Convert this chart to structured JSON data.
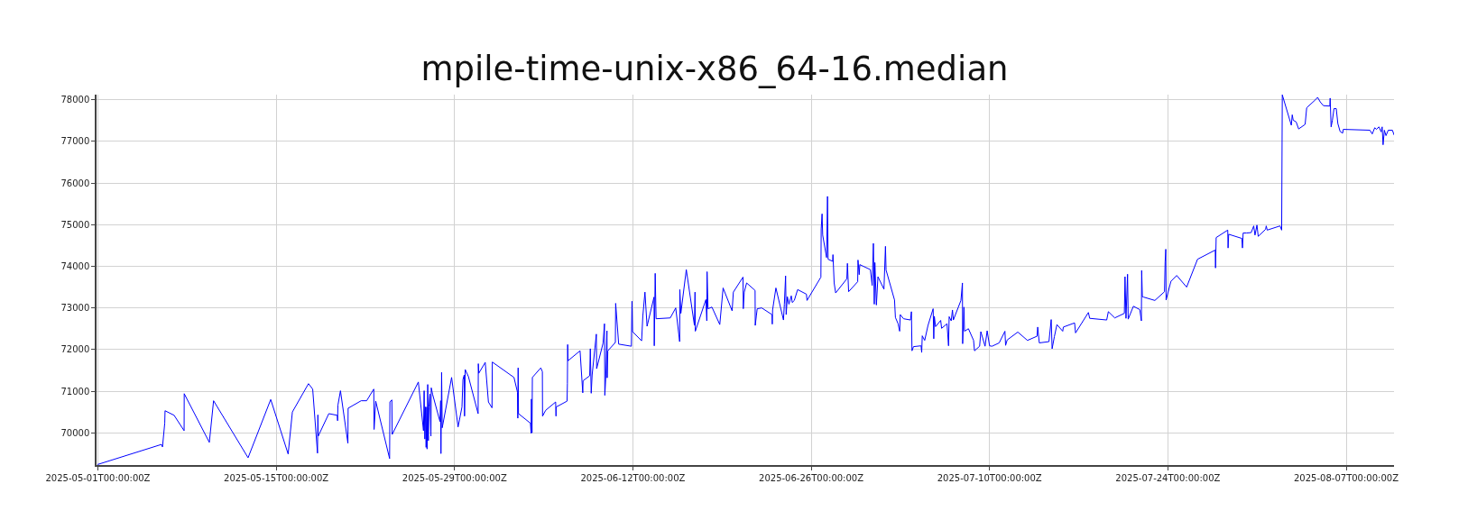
{
  "chart_data": {
    "type": "line",
    "title": "mpile-time-unix-x86_64-16.median",
    "x": [
      "2025-05-01T00:00",
      "2025-05-05T23:55",
      "2025-05-06T01:45",
      "2025-05-06T06:00",
      "2025-05-06T06:35",
      "2025-05-06T23:40",
      "2025-05-07T18:30",
      "2025-05-07T18:40",
      "2025-05-09T18:00",
      "2025-05-10T02:00",
      "2025-05-12T19:00",
      "2025-05-14T13:40",
      "2025-05-15T22:30",
      "2025-05-16T06:30",
      "2025-05-17T12:50",
      "2025-05-17T20:45",
      "2025-05-18T05:50",
      "2025-05-18T06:30",
      "2025-05-18T07:10",
      "2025-05-19T03:10",
      "2025-05-19T19:00",
      "2025-05-19T19:40",
      "2025-05-19T20:15",
      "2025-05-20T01:05",
      "2025-05-20T15:05",
      "2025-05-20T15:30",
      "2025-05-21T16:05",
      "2025-05-22T02:25",
      "2025-05-22T15:50",
      "2025-05-22T16:25",
      "2025-05-22T19:30",
      "2025-05-23T21:40",
      "2025-05-23T22:15",
      "2025-05-24T01:55",
      "2025-05-24T02:30",
      "2025-05-26T03:50",
      "2025-05-26T13:30",
      "2025-05-26T14:45",
      "2025-05-26T16:00",
      "2025-05-26T17:10",
      "2025-05-26T18:25",
      "2025-05-26T19:40",
      "2025-05-26T20:15",
      "2025-05-26T21:30",
      "2025-05-26T22:40",
      "2025-05-26T23:50",
      "2025-05-27T01:40",
      "2025-05-27T03:30",
      "2025-05-27T04:10",
      "2025-05-27T06:35",
      "2025-05-27T20:35",
      "2025-05-27T21:50",
      "2025-05-27T22:25",
      "2025-05-27T23:40",
      "2025-05-28T00:50",
      "2025-05-28T18:30",
      "2025-05-29T06:40",
      "2025-05-29T14:00",
      "2025-05-29T15:50",
      "2025-05-29T18:15",
      "2025-05-29T18:50",
      "2025-05-29T20:05",
      "2025-05-30T02:10",
      "2025-05-30T20:25",
      "2025-05-30T20:50",
      "2025-05-30T21:40",
      "2025-05-31T09:50",
      "2025-05-31T15:50",
      "2025-05-31T22:35",
      "2025-05-31T23:10",
      "2025-06-02T16:00",
      "2025-06-02T22:40",
      "2025-06-02T23:15",
      "2025-06-02T23:50",
      "2025-06-03T00:30",
      "2025-06-03T23:00",
      "2025-06-04T00:15",
      "2025-06-04T00:50",
      "2025-06-04T02:00",
      "2025-06-04T02:40",
      "2025-06-04T18:30",
      "2025-06-04T21:30",
      "2025-06-04T21:50",
      "2025-06-05T03:40",
      "2025-06-05T22:30",
      "2025-06-05T23:10",
      "2025-06-05T23:30",
      "2025-06-06T20:00",
      "2025-06-06T20:40",
      "2025-06-06T21:10",
      "2025-06-06T21:45",
      "2025-06-07T20:30",
      "2025-06-08T01:35",
      "2025-06-08T02:10",
      "2025-06-08T14:40",
      "2025-06-08T15:50",
      "2025-06-08T17:30",
      "2025-06-08T19:15",
      "2025-06-09T03:10",
      "2025-06-09T03:45",
      "2025-06-09T15:45",
      "2025-06-09T18:30",
      "2025-06-09T19:10",
      "2025-06-09T20:50",
      "2025-06-09T23:10",
      "2025-06-09T23:40",
      "2025-06-10T00:50",
      "2025-06-10T15:00",
      "2025-06-10T15:35",
      "2025-06-10T21:15",
      "2025-06-11T21:10",
      "2025-06-11T22:20",
      "2025-06-11T23:25",
      "2025-06-12T16:30",
      "2025-06-12T18:45",
      "2025-06-12T22:45",
      "2025-06-13T02:45",
      "2025-06-13T15:50",
      "2025-06-13T16:20",
      "2025-06-13T18:05",
      "2025-06-13T19:45",
      "2025-06-14T22:30",
      "2025-06-15T08:45",
      "2025-06-15T16:10",
      "2025-06-15T16:30",
      "2025-06-15T18:25",
      "2025-06-16T04:40",
      "2025-06-16T20:00",
      "2025-06-16T21:05",
      "2025-06-16T21:40",
      "2025-06-17T17:35",
      "2025-06-17T19:20",
      "2025-06-17T19:50",
      "2025-06-17T21:35",
      "2025-06-18T05:00",
      "2025-06-18T19:45",
      "2025-06-19T02:00",
      "2025-06-19T19:00",
      "2025-06-19T21:20",
      "2025-06-20T15:30",
      "2025-06-20T16:05",
      "2025-06-20T17:50",
      "2025-06-20T22:20",
      "2025-06-21T14:15",
      "2025-06-21T14:35",
      "2025-06-21T16:35",
      "2025-06-21T18:15",
      "2025-06-22T02:45",
      "2025-06-22T22:05",
      "2025-06-22T22:40",
      "2025-06-22T23:15",
      "2025-06-23T05:30",
      "2025-06-23T19:45",
      "2025-06-23T21:25",
      "2025-06-23T23:45",
      "2025-06-24T00:50",
      "2025-06-24T03:05",
      "2025-06-24T06:00",
      "2025-06-24T10:30",
      "2025-06-24T12:15",
      "2025-06-24T16:10",
      "2025-06-24T22:25",
      "2025-06-25T15:00",
      "2025-06-25T16:05",
      "2025-06-26T18:15",
      "2025-06-26T18:50",
      "2025-06-26T20:30",
      "2025-06-26T21:40",
      "2025-06-27T05:00",
      "2025-06-27T06:45",
      "2025-06-27T07:50",
      "2025-06-27T16:25",
      "2025-06-27T17:00",
      "2025-06-27T19:15",
      "2025-06-27T22:05",
      "2025-06-28T19:10",
      "2025-06-28T20:15",
      "2025-06-28T22:30",
      "2025-06-29T15:35",
      "2025-06-29T16:10",
      "2025-06-29T18:25",
      "2025-06-29T19:35",
      "2025-06-30T15:30",
      "2025-06-30T18:55",
      "2025-06-30T21:10",
      "2025-06-30T22:50",
      "2025-07-01T00:00",
      "2025-07-01T02:50",
      "2025-07-01T05:45",
      "2025-07-01T17:05",
      "2025-07-01T19:55",
      "2025-07-01T21:05",
      "2025-07-02T13:00",
      "2025-07-02T14:40",
      "2025-07-02T19:45",
      "2025-07-02T22:40",
      "2025-07-02T23:45",
      "2025-07-03T06:00",
      "2025-07-03T19:05",
      "2025-07-03T20:50",
      "2025-07-03T21:55",
      "2025-07-04T00:45",
      "2025-07-04T15:00",
      "2025-07-04T16:10",
      "2025-07-04T17:15",
      "2025-07-04T21:50",
      "2025-07-05T04:05",
      "2025-07-05T13:45",
      "2025-07-05T14:55",
      "2025-07-05T16:00",
      "2025-07-05T18:15",
      "2025-07-06T04:00",
      "2025-07-06T05:40",
      "2025-07-06T15:55",
      "2025-07-06T18:45",
      "2025-07-06T19:55",
      "2025-07-06T23:50",
      "2025-07-07T02:10",
      "2025-07-07T03:50",
      "2025-07-07T18:05",
      "2025-07-07T20:55",
      "2025-07-07T21:20",
      "2025-07-07T23:45",
      "2025-07-08T00:50",
      "2025-07-08T08:15",
      "2025-07-08T17:55",
      "2025-07-08T19:40",
      "2025-07-09T05:20",
      "2025-07-09T07:35",
      "2025-07-09T15:35",
      "2025-07-09T19:30",
      "2025-07-10T00:05",
      "2025-07-10T04:50",
      "2025-07-10T18:10",
      "2025-07-11T05:00",
      "2025-07-11T06:15",
      "2025-07-11T09:15",
      "2025-07-12T05:15",
      "2025-07-12T23:25",
      "2025-07-13T17:30",
      "2025-07-13T18:45",
      "2025-07-13T21:45",
      "2025-07-14T15:55",
      "2025-07-14T20:10",
      "2025-07-14T21:55",
      "2025-07-15T02:10",
      "2025-07-15T07:00",
      "2025-07-15T17:55",
      "2025-07-15T19:05",
      "2025-07-16T16:15",
      "2025-07-16T18:05",
      "2025-07-17T18:15",
      "2025-07-17T20:45",
      "2025-07-19T04:45",
      "2025-07-19T07:50",
      "2025-07-19T19:55",
      "2025-07-20T14:00",
      "2025-07-20T15:15",
      "2025-07-20T17:05",
      "2025-07-20T20:05",
      "2025-07-20T21:15",
      "2025-07-21T07:00",
      "2025-07-21T19:05",
      "2025-07-21T22:05",
      "2025-07-21T22:40",
      "2025-07-21T23:55",
      "2025-07-22T02:20",
      "2025-07-22T23:30",
      "2025-07-23T17:40",
      "2025-07-23T18:50",
      "2025-07-23T20:05",
      "2025-07-23T20:40",
      "2025-07-24T05:45",
      "2025-07-24T16:40",
      "2025-07-25T11:20",
      "2025-07-26T07:55",
      "2025-07-27T17:15",
      "2025-07-27T17:50",
      "2025-07-27T19:00",
      "2025-07-28T16:50",
      "2025-07-28T17:25",
      "2025-07-28T18:35",
      "2025-07-29T19:25",
      "2025-07-29T20:35",
      "2025-07-29T21:50",
      "2025-07-30T03:50",
      "2025-07-30T12:55",
      "2025-07-30T17:45",
      "2025-07-30T20:10",
      "2025-07-30T23:50",
      "2025-07-31T02:15",
      "2025-07-31T16:10",
      "2025-07-31T17:20",
      "2025-07-31T19:10",
      "2025-08-01T19:20",
      "2025-08-01T22:25",
      "2025-08-01T23:35",
      "2025-08-02T16:35",
      "2025-08-02T18:20",
      "2025-08-02T20:10",
      "2025-08-03T01:40",
      "2025-08-03T06:25",
      "2025-08-03T18:35",
      "2025-08-03T21:35",
      "2025-08-04T13:55",
      "2025-08-04T18:10",
      "2025-08-04T23:00",
      "2025-08-05T05:00",
      "2025-08-05T17:10",
      "2025-08-05T17:45",
      "2025-08-05T19:35",
      "2025-08-05T22:00",
      "2025-08-06T01:00",
      "2025-08-06T05:15",
      "2025-08-06T08:15",
      "2025-08-06T12:30",
      "2025-08-06T17:20",
      "2025-08-06T18:30",
      "2025-08-08T20:45",
      "2025-08-09T01:00",
      "2025-08-09T05:50",
      "2025-08-09T08:50",
      "2025-08-09T13:40",
      "2025-08-09T17:55",
      "2025-08-09T19:45",
      "2025-08-09T21:30",
      "2025-08-09T23:55",
      "2025-08-10T03:00",
      "2025-08-10T07:10",
      "2025-08-10T15:05",
      "2025-08-10T18:05"
    ],
    "series": [
      {
        "color": "#0000ff",
        "values": [
          69240,
          69720,
          69660,
          70230,
          70530,
          70420,
          70050,
          70940,
          69770,
          70770,
          69400,
          70800,
          69490,
          70500,
          71180,
          71050,
          69510,
          70430,
          69920,
          70460,
          70420,
          70290,
          70660,
          71010,
          69750,
          70590,
          70770,
          70770,
          71050,
          70080,
          70760,
          69380,
          70740,
          70790,
          69960,
          71220,
          70050,
          71010,
          69850,
          70620,
          69650,
          70620,
          69610,
          71160,
          69810,
          70620,
          70930,
          69920,
          71080,
          70930,
          70270,
          70770,
          69500,
          71450,
          70120,
          71330,
          70140,
          70620,
          71280,
          71390,
          70400,
          71520,
          71350,
          70460,
          71660,
          71430,
          71690,
          70740,
          70600,
          71700,
          71330,
          70970,
          70350,
          71560,
          70460,
          70230,
          69990,
          70810,
          70000,
          71330,
          71560,
          71470,
          70400,
          70540,
          70740,
          70400,
          70620,
          70760,
          71180,
          72120,
          71730,
          71970,
          70960,
          71250,
          71370,
          72020,
          70950,
          71390,
          72370,
          71540,
          72150,
          72620,
          70900,
          71300,
          72450,
          71320,
          71970,
          72170,
          73110,
          72130,
          72080,
          73160,
          72430,
          72210,
          72800,
          73380,
          72560,
          73260,
          72090,
          73830,
          72740,
          72760,
          73000,
          72190,
          73440,
          72870,
          73920,
          72580,
          73380,
          72440,
          73200,
          72690,
          73870,
          72980,
          73020,
          72600,
          73480,
          72930,
          73380,
          73740,
          72980,
          73380,
          73600,
          73420,
          72580,
          72800,
          72980,
          73000,
          72840,
          72610,
          72950,
          73480,
          72710,
          73090,
          73770,
          72840,
          73270,
          73090,
          73290,
          73130,
          73180,
          73440,
          73330,
          73180,
          73740,
          74900,
          75260,
          74750,
          74210,
          75680,
          74170,
          74120,
          74280,
          73600,
          73360,
          73700,
          74070,
          73390,
          73630,
          74150,
          73800,
          74040,
          73920,
          73540,
          74550,
          73090,
          74090,
          73070,
          73750,
          73450,
          74480,
          73910,
          73190,
          72770,
          72620,
          72440,
          72840,
          72740,
          72710,
          72910,
          71970,
          72070,
          72090,
          71930,
          72330,
          72220,
          72580,
          72980,
          72260,
          72800,
          72550,
          72700,
          72510,
          72620,
          72090,
          72790,
          72690,
          72950,
          72710,
          73180,
          73600,
          72140,
          73020,
          72440,
          72500,
          72220,
          71970,
          72080,
          72430,
          72080,
          72450,
          72090,
          72080,
          72160,
          72440,
          72100,
          72230,
          72420,
          72220,
          72320,
          72540,
          72160,
          72190,
          72720,
          72020,
          72310,
          72600,
          72440,
          72540,
          72640,
          72400,
          72890,
          72750,
          72710,
          72910,
          72760,
          72870,
          73750,
          72750,
          73810,
          72730,
          73040,
          72960,
          72690,
          73900,
          73270,
          73260,
          73180,
          73390,
          74100,
          74410,
          73190,
          73640,
          73780,
          73500,
          74170,
          74390,
          73960,
          74690,
          74870,
          74440,
          74770,
          74670,
          74440,
          74800,
          74800,
          74810,
          74970,
          74750,
          74990,
          74720,
          74890,
          74970,
          74870,
          74970,
          74870,
          78120,
          77390,
          77640,
          77510,
          77470,
          77300,
          77410,
          77810,
          78000,
          78060,
          77950,
          77860,
          77850,
          78040,
          77350,
          77510,
          77790,
          77790,
          77430,
          77240,
          77200,
          77290,
          77270,
          77180,
          77330,
          77290,
          77350,
          77230,
          77350,
          76920,
          77270,
          77140,
          77270,
          77270,
          77160
        ]
      }
    ],
    "xlim": [
      "2025-04-30T21:30",
      "2025-08-10T18:05"
    ],
    "xticks": [
      {
        "value": "2025-05-01",
        "label": "2025-05-01T00:00:00Z"
      },
      {
        "value": "2025-05-15",
        "label": "2025-05-15T00:00:00Z"
      },
      {
        "value": "2025-05-29",
        "label": "2025-05-29T00:00:00Z"
      },
      {
        "value": "2025-06-12",
        "label": "2025-06-12T00:00:00Z"
      },
      {
        "value": "2025-06-26",
        "label": "2025-06-26T00:00:00Z"
      },
      {
        "value": "2025-07-10",
        "label": "2025-07-10T00:00:00Z"
      },
      {
        "value": "2025-07-24",
        "label": "2025-07-24T00:00:00Z"
      },
      {
        "value": "2025-08-07",
        "label": "2025-08-07T00:00:00Z"
      }
    ],
    "ylim": [
      69225,
      78125
    ],
    "yticks": [
      70000,
      71000,
      72000,
      73000,
      74000,
      75000,
      76000,
      77000,
      78000
    ],
    "grid": true,
    "line_style": "solid"
  }
}
